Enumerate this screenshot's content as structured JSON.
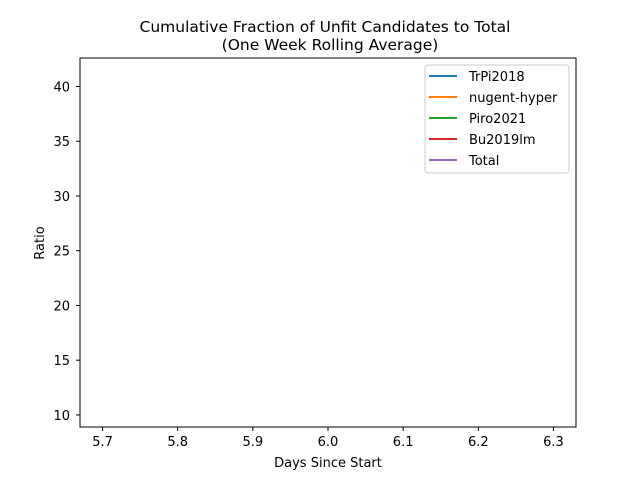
{
  "chart_data": {
    "type": "line",
    "title": "Cumulative Fraction of Unfit Candidates to Total",
    "subtitle": "(One Week Rolling Average)",
    "xlabel": "Days Since Start",
    "ylabel": "Ratio",
    "xlim": [
      5.67,
      6.33
    ],
    "ylim": [
      8.9,
      42.6
    ],
    "xticks": [
      5.7,
      5.8,
      5.9,
      6.0,
      6.1,
      6.2,
      6.3
    ],
    "xtick_labels": [
      "5.7",
      "5.8",
      "5.9",
      "6.0",
      "6.1",
      "6.2",
      "6.3"
    ],
    "yticks": [
      10,
      15,
      20,
      25,
      30,
      35,
      40
    ],
    "ytick_labels": [
      "10",
      "15",
      "20",
      "25",
      "30",
      "35",
      "40"
    ],
    "grid": false,
    "legend_position": "top-right",
    "series": [
      {
        "name": "TrPi2018",
        "color": "#1f77b4",
        "x": [],
        "y": []
      },
      {
        "name": "nugent-hyper",
        "color": "#ff7f0e",
        "x": [],
        "y": []
      },
      {
        "name": "Piro2021",
        "color": "#2ca02c",
        "x": [],
        "y": []
      },
      {
        "name": "Bu2019lm",
        "color": "#d62728",
        "x": [],
        "y": []
      },
      {
        "name": "Total",
        "color": "#9467bd",
        "x": [],
        "y": []
      }
    ]
  }
}
